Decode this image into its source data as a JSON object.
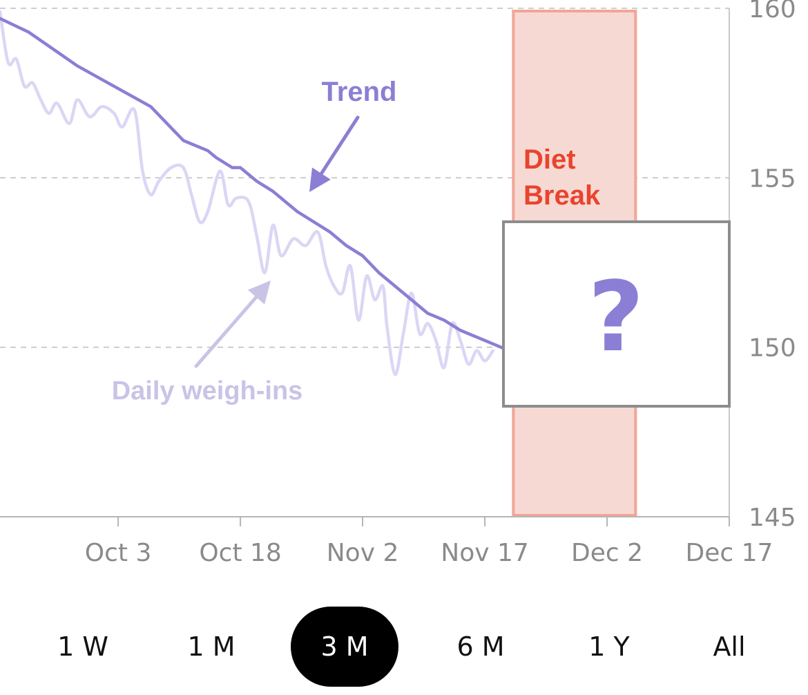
{
  "chart_data": {
    "type": "line",
    "x_tick_labels": [
      "Oct 3",
      "Oct 18",
      "Nov 2",
      "Nov 17",
      "Dec 2",
      "Dec 17"
    ],
    "y_ticks": [
      160,
      155,
      150,
      145
    ],
    "ylim": [
      145,
      160
    ],
    "xlim_days_from_oct3": [
      -14.5,
      75
    ],
    "grid": "horizontal dashed",
    "series": [
      {
        "name": "Trend",
        "color": "#8a7fd4",
        "points": [
          [
            -14.5,
            159.7
          ],
          [
            -11,
            159.3
          ],
          [
            -8,
            158.8
          ],
          [
            -5,
            158.3
          ],
          [
            -2,
            157.9
          ],
          [
            1,
            157.5
          ],
          [
            4,
            157.1
          ],
          [
            6,
            156.6
          ],
          [
            8,
            156.1
          ],
          [
            11,
            155.8
          ],
          [
            12,
            155.6
          ],
          [
            14,
            155.3
          ],
          [
            15,
            155.3
          ],
          [
            17,
            154.9
          ],
          [
            19,
            154.6
          ],
          [
            20,
            154.4
          ],
          [
            21,
            154.2
          ],
          [
            22,
            154.0
          ],
          [
            24,
            153.7
          ],
          [
            26,
            153.4
          ],
          [
            28,
            153.0
          ],
          [
            30,
            152.7
          ],
          [
            32,
            152.2
          ],
          [
            33,
            152.0
          ],
          [
            35,
            151.6
          ],
          [
            37,
            151.2
          ],
          [
            38,
            151.0
          ],
          [
            40,
            150.8
          ],
          [
            42,
            150.5
          ],
          [
            45,
            150.2
          ],
          [
            47,
            150.0
          ],
          [
            48,
            149.9
          ]
        ]
      },
      {
        "name": "Daily weigh-ins",
        "color": "#dcd6f5",
        "points": [
          [
            -14.5,
            159.9
          ],
          [
            -13.5,
            158.4
          ],
          [
            -12.5,
            158.5
          ],
          [
            -11.5,
            157.7
          ],
          [
            -10.5,
            157.8
          ],
          [
            -9.5,
            157.3
          ],
          [
            -8.5,
            156.9
          ],
          [
            -7.5,
            157.2
          ],
          [
            -6,
            156.6
          ],
          [
            -5,
            157.3
          ],
          [
            -3.5,
            156.8
          ],
          [
            -2,
            157.1
          ],
          [
            -0.5,
            156.9
          ],
          [
            0.5,
            156.5
          ],
          [
            2,
            157.0
          ],
          [
            3,
            155.2
          ],
          [
            4,
            154.5
          ],
          [
            5,
            154.9
          ],
          [
            6.5,
            155.3
          ],
          [
            8,
            155.3
          ],
          [
            9,
            154.5
          ],
          [
            10,
            153.7
          ],
          [
            11,
            154.0
          ],
          [
            12.5,
            155.2
          ],
          [
            13.5,
            154.2
          ],
          [
            14.5,
            154.4
          ],
          [
            16,
            154.3
          ],
          [
            17,
            153.3
          ],
          [
            18,
            152.2
          ],
          [
            19,
            153.6
          ],
          [
            20,
            152.7
          ],
          [
            21.5,
            153.2
          ],
          [
            23,
            153.0
          ],
          [
            24.5,
            153.4
          ],
          [
            25.5,
            152.4
          ],
          [
            26.5,
            151.8
          ],
          [
            27.5,
            151.6
          ],
          [
            28.5,
            152.4
          ],
          [
            29.5,
            150.8
          ],
          [
            30.5,
            152.1
          ],
          [
            31.5,
            151.4
          ],
          [
            32.5,
            151.8
          ],
          [
            33,
            150.6
          ],
          [
            34,
            149.2
          ],
          [
            35,
            150.4
          ],
          [
            36,
            151.6
          ],
          [
            37,
            150.4
          ],
          [
            38,
            150.7
          ],
          [
            39,
            150.2
          ],
          [
            40,
            149.4
          ],
          [
            41,
            150.7
          ],
          [
            42,
            150.2
          ],
          [
            43,
            149.5
          ],
          [
            44,
            149.9
          ],
          [
            45,
            149.6
          ],
          [
            46,
            149.9
          ]
        ]
      }
    ],
    "annotations": {
      "trend_label": "Trend",
      "daily_label": "Daily weigh-ins",
      "diet_break_line1": "Diet",
      "diet_break_line2": "Break",
      "diet_break_range_days": [
        48.5,
        63.5
      ],
      "unknown_marker": "?"
    },
    "colors": {
      "trend": "#8a7fd4",
      "daily": "#dcd6f5",
      "daily_label": "#c9c3e6",
      "diet_break_fill": "#f7d9d3",
      "diet_break_border": "#f0a597",
      "diet_break_text": "#e8442e",
      "question_mark": "#8a7fd4"
    }
  },
  "range_selector": {
    "options": [
      "1 W",
      "1 M",
      "3 M",
      "6 M",
      "1 Y",
      "All"
    ],
    "selected": "3 M"
  }
}
